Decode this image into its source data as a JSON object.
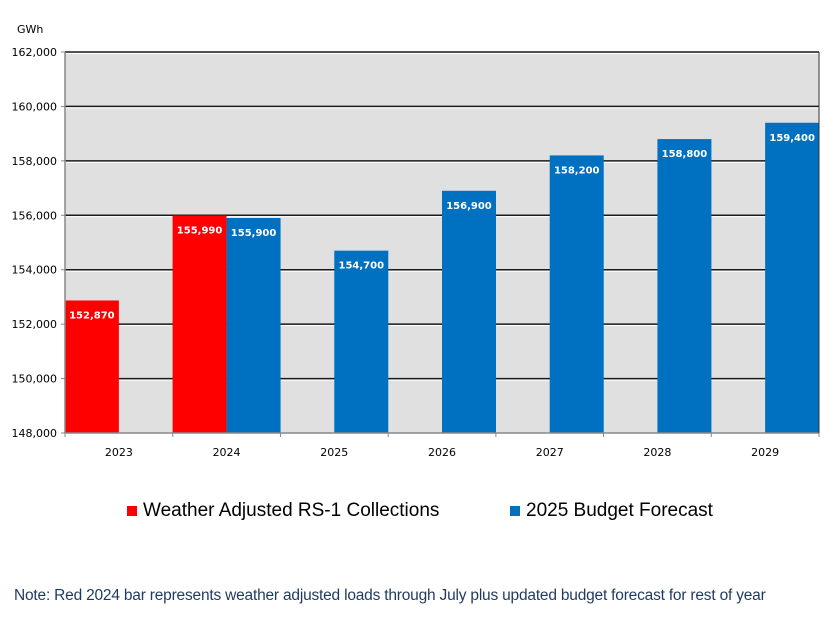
{
  "chart_data": {
    "type": "bar",
    "title": "",
    "ylabel": "GWh",
    "xlabel": "",
    "ylim": [
      148000,
      162000
    ],
    "yticks": [
      148000,
      150000,
      152000,
      154000,
      156000,
      158000,
      160000,
      162000
    ],
    "ytick_labels": [
      "148,000",
      "150,000",
      "152,000",
      "154,000",
      "156,000",
      "158,000",
      "160,000",
      "162,000"
    ],
    "grid": true,
    "categories": [
      "2023",
      "2024",
      "2025",
      "2026",
      "2027",
      "2028",
      "2029"
    ],
    "series": [
      {
        "name": "Weather Adjusted RS-1 Collections",
        "color": "#ff0000",
        "values": [
          152870,
          155990,
          null,
          null,
          null,
          null,
          null
        ],
        "labels": [
          "152,870",
          "155,990",
          null,
          null,
          null,
          null,
          null
        ]
      },
      {
        "name": "2025 Budget Forecast",
        "color": "#0070c0",
        "values": [
          null,
          155900,
          154700,
          156900,
          158200,
          158800,
          159400
        ],
        "labels": [
          null,
          "155,900",
          "154,700",
          "156,900",
          "158,200",
          "158,800",
          "159,400"
        ]
      }
    ],
    "legend_position": "bottom",
    "plot_background": "#e0e0e0"
  },
  "legend": {
    "items": [
      {
        "label": "Weather Adjusted RS-1 Collections",
        "color": "#ff0000"
      },
      {
        "label": "2025 Budget Forecast",
        "color": "#0070c0"
      }
    ]
  },
  "note": "Note:  Red 2024 bar represents weather adjusted loads through July plus updated budget forecast for rest of year"
}
